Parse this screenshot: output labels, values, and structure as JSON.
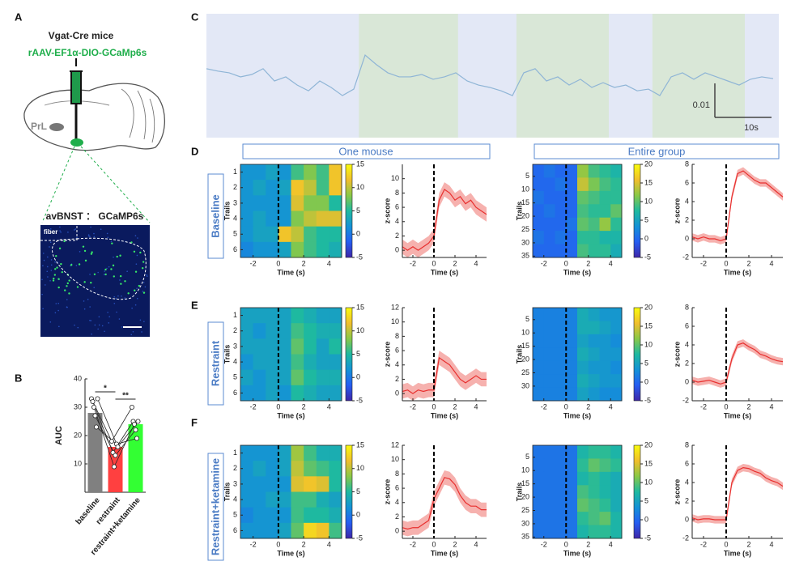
{
  "panel_labels": [
    "A",
    "B",
    "C",
    "D",
    "E",
    "F"
  ],
  "panel_a": {
    "title": "Vgat-Cre mice",
    "virus": "rAAV-EF1α-DIO-GCaMp6s",
    "region": "PrL",
    "image_title": "avBNST ： GCaMP6s",
    "image_label": "fiber"
  },
  "section_headers": [
    "One mouse",
    "Entire group"
  ],
  "conditions": [
    "Baseline",
    "Restraint",
    "Restraint+ketamine"
  ],
  "chart_data": [
    {
      "type": "bar",
      "y_label": "AUC",
      "categories": [
        "baseline",
        "restraint",
        "restraint+ketamine"
      ],
      "values": [
        28,
        16,
        24
      ],
      "colors": [
        "#808080",
        "#ff4040",
        "#33ff33"
      ],
      "points": [
        [
          33,
          32,
          30,
          27,
          23,
          33
        ],
        [
          18,
          14,
          9,
          13,
          17,
          16
        ],
        [
          30,
          25,
          24,
          22,
          19,
          25
        ]
      ],
      "ylim": [
        0,
        40
      ],
      "yticks": [
        10,
        20,
        30,
        40
      ],
      "significance": [
        {
          "label": "*",
          "pair": [
            0,
            1
          ]
        },
        {
          "label": "**",
          "pair": [
            1,
            2
          ]
        }
      ]
    },
    {
      "type": "trace",
      "color": "#8fb5d6",
      "xlim": [
        0,
        101
      ],
      "x": [
        0,
        2,
        4,
        6,
        8,
        10,
        12,
        14,
        16,
        18,
        20,
        22,
        24,
        26,
        28,
        30,
        32,
        34,
        36,
        38,
        40,
        42,
        44,
        46,
        48,
        50,
        52,
        54,
        56,
        58,
        60,
        62,
        64,
        66,
        68,
        70,
        72,
        74,
        76,
        78,
        80,
        82,
        84,
        86,
        88,
        90,
        92,
        94,
        96,
        98,
        100
      ],
      "values": [
        0.0036,
        0.0029,
        0.0024,
        0.0012,
        0.0019,
        0.0036,
        0,
        0.0012,
        -0.0012,
        -0.0029,
        0,
        -0.0019,
        -0.0043,
        -0.0024,
        0.0076,
        0.0048,
        0.0024,
        0.0012,
        0.0012,
        0.0019,
        0.0005,
        0.0012,
        0.0024,
        0,
        -0.0012,
        -0.0019,
        -0.0029,
        -0.0043,
        0.0024,
        0.0036,
        0,
        0.0012,
        -0.0012,
        0.0005,
        -0.0019,
        -0.0005,
        -0.0019,
        -0.0012,
        -0.0029,
        -0.0024,
        -0.0043,
        0.0012,
        0.0024,
        0.0005,
        0.0024,
        0.0012,
        0,
        -0.0012,
        0.0005,
        0.0012,
        0.0007
      ],
      "shaded": [
        [
          26.9,
          44.4
        ],
        [
          54.7,
          71
        ],
        [
          78.7,
          95
        ]
      ],
      "scalebar": {
        "y": 0.01,
        "x": {
          "value": 10,
          "label": "10s"
        }
      }
    },
    {
      "type": "heatmap",
      "x_label": "Time (s)",
      "y_label": "Trails",
      "xlim": [
        -3,
        5
      ],
      "xticks": [
        -2,
        0,
        2,
        4
      ],
      "ylim": [
        0.5,
        6.5
      ],
      "yticks": [
        1,
        2,
        3,
        4,
        5,
        6
      ],
      "event_x": 0,
      "colorbar_lim": [
        -5,
        15
      ],
      "colorbar_ticks": [
        -5,
        0,
        5,
        10,
        15
      ],
      "values": [
        [
          2,
          2,
          3,
          2,
          6,
          8,
          6,
          12
        ],
        [
          2,
          3,
          2,
          3,
          12,
          10,
          6,
          12
        ],
        [
          2,
          2,
          2,
          2,
          11,
          8,
          8,
          5
        ],
        [
          2,
          3,
          2,
          2,
          8,
          10,
          11,
          11
        ],
        [
          2,
          3,
          3,
          12,
          10,
          6,
          5,
          5
        ],
        [
          1,
          2,
          2,
          3,
          8,
          6,
          5,
          4
        ]
      ]
    },
    {
      "type": "line",
      "x_label": "Time (s)",
      "y_label": "z-score",
      "color": "#e8302f",
      "sem": 1,
      "event_x": 0,
      "xlim": [
        -3,
        5
      ],
      "xticks": [
        -2,
        0,
        2,
        4
      ],
      "ylim": [
        -1,
        12
      ],
      "yticks": [
        0,
        2,
        4,
        6,
        8,
        10
      ],
      "x": [
        -3,
        -2.5,
        -2,
        -1.5,
        -1,
        -0.5,
        0,
        0.5,
        1,
        1.5,
        2,
        2.5,
        3,
        3.5,
        4,
        4.5,
        5
      ],
      "values": [
        0.5,
        0,
        0.5,
        0,
        0.5,
        1,
        2,
        7,
        8.5,
        8,
        7,
        7.5,
        6.5,
        7,
        6,
        5.5,
        5
      ]
    },
    {
      "type": "heatmap",
      "x_label": "Time (s)",
      "y_label": "Trails",
      "xlim": [
        -3,
        5
      ],
      "xticks": [
        -2,
        0,
        2,
        4
      ],
      "ylim": [
        0.5,
        35.5
      ],
      "yticks": [
        5,
        10,
        15,
        20,
        25,
        30,
        35
      ],
      "event_x": 0,
      "colorbar_lim": [
        -5,
        20
      ],
      "colorbar_ticks": [
        -5,
        0,
        5,
        10,
        15,
        20
      ],
      "values": [
        [
          0,
          1,
          0,
          0,
          12,
          9,
          8,
          7
        ],
        [
          0,
          0,
          1,
          0,
          14,
          11,
          9,
          8
        ],
        [
          1,
          0,
          0,
          0,
          10,
          9,
          8,
          8
        ],
        [
          0,
          1,
          0,
          0,
          9,
          8,
          8,
          10
        ],
        [
          0,
          0,
          0,
          1,
          10,
          9,
          12,
          8
        ],
        [
          1,
          0,
          1,
          0,
          8,
          8,
          7,
          7
        ],
        [
          0,
          0,
          0,
          0,
          9,
          8,
          8,
          6
        ]
      ]
    },
    {
      "type": "line",
      "x_label": "Time (s)",
      "y_label": "z-score",
      "color": "#e8302f",
      "sem": 0.4,
      "event_x": 0,
      "xlim": [
        -3,
        5
      ],
      "xticks": [
        -2,
        0,
        2,
        4
      ],
      "ylim": [
        -2,
        8
      ],
      "yticks": [
        -2,
        0,
        2,
        4,
        6,
        8
      ],
      "x": [
        -3,
        -2.5,
        -2,
        -1.5,
        -1,
        -0.5,
        0,
        0.5,
        1,
        1.5,
        2,
        2.5,
        3,
        3.5,
        4,
        4.5,
        5
      ],
      "values": [
        0.2,
        0,
        0.2,
        0,
        0,
        -0.2,
        0,
        4.5,
        7,
        7.3,
        6.8,
        6.3,
        6,
        6,
        5.5,
        5,
        4.5
      ]
    },
    {
      "type": "heatmap",
      "x_label": "Time (s)",
      "y_label": "Trails",
      "xlim": [
        -3,
        5
      ],
      "xticks": [
        -2,
        0,
        2,
        4
      ],
      "ylim": [
        0.5,
        6.5
      ],
      "yticks": [
        1,
        2,
        3,
        4,
        5,
        6
      ],
      "event_x": 0,
      "colorbar_lim": [
        -5,
        15
      ],
      "colorbar_ticks": [
        -5,
        0,
        5,
        10,
        15
      ],
      "values": [
        [
          3,
          3,
          3,
          3,
          5,
          4,
          3,
          3
        ],
        [
          3,
          2,
          3,
          3,
          6,
          5,
          4,
          4
        ],
        [
          3,
          3,
          3,
          3,
          7,
          5,
          3,
          5
        ],
        [
          2,
          3,
          3,
          3,
          6,
          4,
          3,
          3
        ],
        [
          3,
          2,
          3,
          3,
          7,
          5,
          4,
          4
        ],
        [
          2,
          2,
          3,
          2,
          5,
          4,
          3,
          3
        ]
      ]
    },
    {
      "type": "line",
      "x_label": "Time (s)",
      "y_label": "z-score",
      "color": "#e8302f",
      "sem": 1,
      "event_x": 0,
      "xlim": [
        -3,
        5
      ],
      "xticks": [
        -2,
        0,
        2,
        4
      ],
      "ylim": [
        -1,
        12
      ],
      "yticks": [
        0,
        2,
        4,
        6,
        8,
        10,
        12
      ],
      "x": [
        -3,
        -2.5,
        -2,
        -1.5,
        -1,
        -0.5,
        0,
        0.5,
        1,
        1.5,
        2,
        2.5,
        3,
        3.5,
        4,
        4.5,
        5
      ],
      "values": [
        0.3,
        0.5,
        0,
        0.5,
        0.3,
        0.5,
        0.5,
        5,
        4.5,
        4,
        3,
        2,
        1.5,
        2,
        2.5,
        2,
        2
      ]
    },
    {
      "type": "heatmap",
      "x_label": "Time (s)",
      "y_label": "Trails",
      "xlim": [
        -3,
        5
      ],
      "xticks": [
        -2,
        0,
        2,
        4
      ],
      "ylim": [
        0.5,
        35.5
      ],
      "yticks": [
        5,
        10,
        15,
        20,
        25,
        30
      ],
      "event_x": 0,
      "colorbar_lim": [
        -5,
        20
      ],
      "colorbar_ticks": [
        -5,
        0,
        5,
        10,
        15,
        20
      ],
      "values": [
        [
          2,
          2,
          2,
          2,
          6,
          5,
          4,
          4
        ],
        [
          2,
          2,
          2,
          2,
          6,
          6,
          5,
          4
        ],
        [
          2,
          2,
          2,
          2,
          5,
          4,
          4,
          3
        ],
        [
          2,
          2,
          2,
          2,
          6,
          5,
          4,
          4
        ],
        [
          2,
          2,
          2,
          2,
          5,
          4,
          4,
          3
        ],
        [
          2,
          2,
          2,
          2,
          6,
          5,
          4,
          4
        ],
        [
          2,
          2,
          2,
          2,
          5,
          4,
          3,
          3
        ]
      ]
    },
    {
      "type": "line",
      "x_label": "Time (s)",
      "y_label": "z-score",
      "color": "#e8302f",
      "sem": 0.4,
      "event_x": 0,
      "xlim": [
        -3,
        5
      ],
      "xticks": [
        -2,
        0,
        2,
        4
      ],
      "ylim": [
        -2,
        8
      ],
      "yticks": [
        -2,
        0,
        2,
        4,
        6,
        8
      ],
      "x": [
        -3,
        -2.5,
        -2,
        -1.5,
        -1,
        -0.5,
        0,
        0.5,
        1,
        1.5,
        2,
        2.5,
        3,
        3.5,
        4,
        4.5,
        5
      ],
      "values": [
        0.2,
        0,
        0.1,
        0.2,
        0,
        -0.2,
        0,
        2.5,
        4,
        4.2,
        3.8,
        3.5,
        3,
        2.8,
        2.5,
        2.3,
        2.2
      ]
    },
    {
      "type": "heatmap",
      "x_label": "Time (s)",
      "y_label": "Trails",
      "xlim": [
        -3,
        5
      ],
      "xticks": [
        -2,
        0,
        2,
        4
      ],
      "ylim": [
        0.5,
        6.5
      ],
      "yticks": [
        1,
        2,
        3,
        4,
        5,
        6
      ],
      "event_x": 0,
      "colorbar_lim": [
        -5,
        15
      ],
      "colorbar_ticks": [
        -5,
        0,
        5,
        10,
        15
      ],
      "values": [
        [
          2,
          2,
          2,
          3,
          9,
          6,
          4,
          4
        ],
        [
          2,
          3,
          2,
          3,
          10,
          7,
          6,
          5
        ],
        [
          2,
          2,
          2,
          2,
          11,
          12,
          11,
          5
        ],
        [
          2,
          2,
          3,
          3,
          6,
          6,
          4,
          3
        ],
        [
          1,
          2,
          2,
          2,
          6,
          5,
          5,
          4
        ],
        [
          2,
          2,
          2,
          3,
          7,
          13,
          12,
          6
        ]
      ]
    },
    {
      "type": "line",
      "x_label": "Time (s)",
      "y_label": "z-score",
      "color": "#e8302f",
      "sem": 1,
      "event_x": 0,
      "xlim": [
        -3,
        5
      ],
      "xticks": [
        -2,
        0,
        2,
        4
      ],
      "ylim": [
        -1,
        12
      ],
      "yticks": [
        0,
        2,
        4,
        6,
        8,
        10,
        12
      ],
      "x": [
        -3,
        -2.5,
        -2,
        -1.5,
        -1,
        -0.5,
        0,
        0.5,
        1,
        1.5,
        2,
        2.5,
        3,
        3.5,
        4,
        4.5,
        5
      ],
      "values": [
        0.5,
        0.3,
        0.5,
        0.5,
        1,
        1.5,
        4.5,
        6,
        7.5,
        7.3,
        6.5,
        5,
        4,
        3.5,
        3.5,
        3,
        3
      ]
    },
    {
      "type": "heatmap",
      "x_label": "Time (s)",
      "y_label": "Trails",
      "xlim": [
        -3,
        5
      ],
      "xticks": [
        -2,
        0,
        2,
        4
      ],
      "ylim": [
        0.5,
        35.5
      ],
      "yticks": [
        5,
        10,
        15,
        20,
        25,
        30,
        35
      ],
      "event_x": 0,
      "colorbar_lim": [
        -5,
        20
      ],
      "colorbar_ticks": [
        -5,
        0,
        5,
        10,
        15,
        20
      ],
      "values": [
        [
          1,
          1,
          1,
          1,
          7,
          8,
          8,
          7
        ],
        [
          1,
          1,
          1,
          1,
          8,
          10,
          9,
          8
        ],
        [
          1,
          1,
          1,
          1,
          7,
          8,
          7,
          6
        ],
        [
          1,
          1,
          1,
          1,
          9,
          8,
          7,
          6
        ],
        [
          1,
          1,
          1,
          1,
          10,
          9,
          8,
          6
        ],
        [
          1,
          1,
          1,
          1,
          8,
          9,
          10,
          7
        ],
        [
          1,
          1,
          1,
          1,
          7,
          8,
          8,
          7
        ]
      ]
    },
    {
      "type": "line",
      "x_label": "Time (s)",
      "y_label": "z-score",
      "color": "#e8302f",
      "sem": 0.4,
      "event_x": 0,
      "xlim": [
        -3,
        5
      ],
      "xticks": [
        -2,
        0,
        2,
        4
      ],
      "ylim": [
        -2,
        8
      ],
      "yticks": [
        -2,
        0,
        2,
        4,
        6,
        8
      ],
      "x": [
        -3,
        -2.5,
        -2,
        -1.5,
        -1,
        -0.5,
        0,
        0.5,
        1,
        1.5,
        2,
        2.5,
        3,
        3.5,
        4,
        4.5,
        5
      ],
      "values": [
        0.2,
        0,
        0.1,
        0.1,
        0,
        0,
        0,
        4,
        5.3,
        5.6,
        5.5,
        5.2,
        5,
        4.5,
        4.2,
        4,
        3.6
      ]
    }
  ]
}
